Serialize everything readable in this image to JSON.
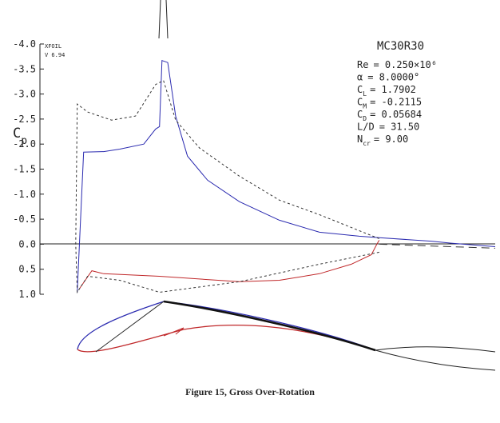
{
  "chart_data": {
    "type": "line",
    "caption": "Figure 15, Gross Over-Rotation",
    "program": "XFOIL",
    "version": "V 6.94",
    "ylabel": {
      "symbol": "C",
      "sub": "p"
    },
    "airfoil": "MC30R30",
    "params": [
      {
        "name": "Re",
        "sub": "",
        "value": "= 0.250×10⁶"
      },
      {
        "name": "α",
        "sub": "",
        "value": "= 8.0000°"
      },
      {
        "name": "C",
        "sub": "L",
        "value": "= 1.7902"
      },
      {
        "name": "C",
        "sub": "M",
        "value": "= -0.2115"
      },
      {
        "name": "C",
        "sub": "D",
        "value": "= 0.05684"
      },
      {
        "name": "L/D",
        "sub": "",
        "value": "= 31.50"
      },
      {
        "name": "N",
        "sub": "cr",
        "value": "= 9.00"
      }
    ],
    "xlim": [
      -0.118,
      1.382
    ],
    "ylim": [
      -4,
      1
    ],
    "y_inverted": true,
    "yticks": [
      {
        "value": -4,
        "label": "-4.0"
      },
      -3.5,
      {
        "value": -3,
        "label": "-3.0"
      },
      -2.5,
      {
        "value": -2,
        "label": "-2.0"
      },
      -1.5,
      {
        "value": -1,
        "label": "-1.0"
      },
      -0.5,
      {
        "value": 0,
        "label": "0.0"
      },
      0.5,
      {
        "value": 1,
        "label": "1.0"
      }
    ],
    "series": [
      {
        "color": "#2b2bb0",
        "dash": "none",
        "x": [
          0.005,
          0.026,
          0.092,
          0.145,
          0.224,
          0.263,
          0.276,
          0.284,
          0.303,
          0.329,
          0.368,
          0.434,
          0.539,
          0.671,
          0.803,
          0.934,
          1.0,
          1.171,
          1.237,
          1.382
        ],
        "values": [
          0.96,
          -1.84,
          -1.85,
          -1.9,
          -2.0,
          -2.3,
          -2.35,
          -3.67,
          -3.63,
          -2.56,
          -1.76,
          -1.28,
          -0.85,
          -0.48,
          -0.24,
          -0.16,
          -0.13,
          -0.06,
          -0.02,
          0.05
        ]
      },
      {
        "color": "#c0282a",
        "dash": "none",
        "x": [
          0.013,
          0.053,
          0.092,
          0.276,
          0.539,
          0.671,
          0.803,
          0.908,
          0.974,
          0.992,
          1.0
        ],
        "values": [
          0.88,
          0.53,
          0.59,
          0.64,
          0.75,
          0.72,
          0.59,
          0.4,
          0.21,
          0,
          -0.08
        ]
      },
      {
        "color": "#333333",
        "dash": "3,3",
        "x": [
          1.0,
          0.803,
          0.539,
          0.276,
          0.145,
          0.039,
          0.005,
          0.0,
          0.005,
          0.039,
          0.118,
          0.197,
          0.263,
          0.289,
          0.329,
          0.408,
          0.539,
          0.671,
          0.803,
          0.934,
          1.0
        ],
        "values": [
          0.16,
          0.4,
          0.75,
          0.96,
          0.72,
          0.64,
          0.96,
          0,
          -2.8,
          -2.64,
          -2.48,
          -2.56,
          -3.19,
          -3.27,
          -2.48,
          -1.92,
          -1.36,
          -0.88,
          -0.59,
          -0.27,
          -0.11
        ]
      },
      {
        "color": "#333333",
        "dash": "10,6",
        "x": [
          1.0,
          1.382
        ],
        "values": [
          0,
          0.08
        ]
      }
    ]
  }
}
